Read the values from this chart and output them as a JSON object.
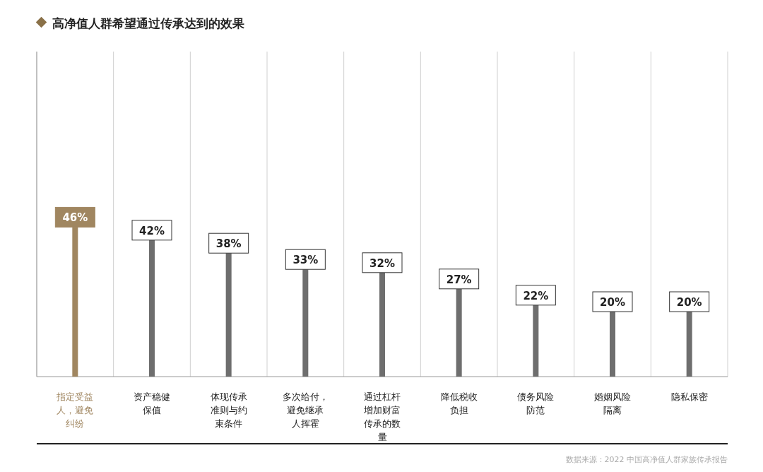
{
  "chart_data": {
    "type": "bar",
    "title": "高净值人群希望通过传承达到的效果",
    "categories": [
      "指定受益人，避免纠纷",
      "资产稳健保值",
      "体现传承准则与约束条件",
      "多次给付，避免继承人挥霍",
      "通过杠杆增加财富传承的数量",
      "降低税收负担",
      "债务风险防范",
      "婚姻风险隔离",
      "隐私保密"
    ],
    "values": [
      46,
      42,
      38,
      33,
      32,
      27,
      22,
      20,
      20
    ],
    "value_labels": [
      "46%",
      "42%",
      "38%",
      "33%",
      "32%",
      "27%",
      "22%",
      "20%",
      "20%"
    ],
    "colors": [
      "#a08660",
      "#6e6e6e",
      "#6e6e6e",
      "#6e6e6e",
      "#6e6e6e",
      "#6e6e6e",
      "#6e6e6e",
      "#6e6e6e",
      "#6e6e6e"
    ],
    "tick_labels": "x",
    "grid": "x",
    "annotations": [
      "数据来源：2022 中国高净值人群家族传承报告"
    ]
  }
}
